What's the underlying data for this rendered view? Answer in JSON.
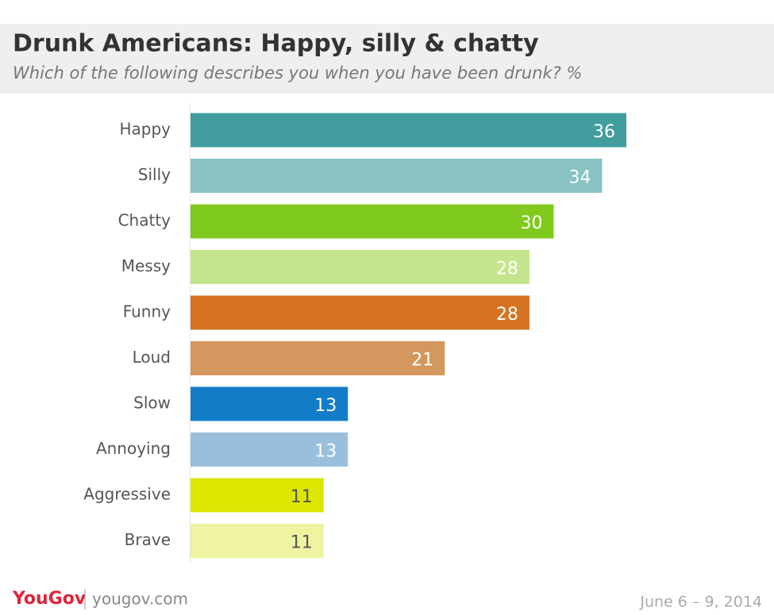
{
  "chart_data": {
    "type": "bar",
    "orientation": "horizontal",
    "title": "Drunk Americans: Happy, silly & chatty",
    "subtitle": "Which of the following describes you when you have been drunk? %",
    "categories": [
      "Happy",
      "Silly",
      "Chatty",
      "Messy",
      "Funny",
      "Loud",
      "Slow",
      "Annoying",
      "Aggressive",
      "Brave"
    ],
    "values": [
      36,
      34,
      30,
      28,
      28,
      21,
      13,
      13,
      11,
      11
    ],
    "colors": [
      "#439d9e",
      "#88c2c3",
      "#80ca1e",
      "#c4e58b",
      "#d57322",
      "#d4975d",
      "#137cc7",
      "#9abfdd",
      "#dde600",
      "#eff4a0"
    ],
    "label_colors": [
      "#ffffff",
      "#ffffff",
      "#ffffff",
      "#ffffff",
      "#ffffff",
      "#ffffff",
      "#ffffff",
      "#ffffff",
      "#555555",
      "#555555"
    ],
    "xlim": [
      0,
      40
    ],
    "brand": "YouGov",
    "source": "yougov.com",
    "date": "June 6 – 9, 2014"
  }
}
